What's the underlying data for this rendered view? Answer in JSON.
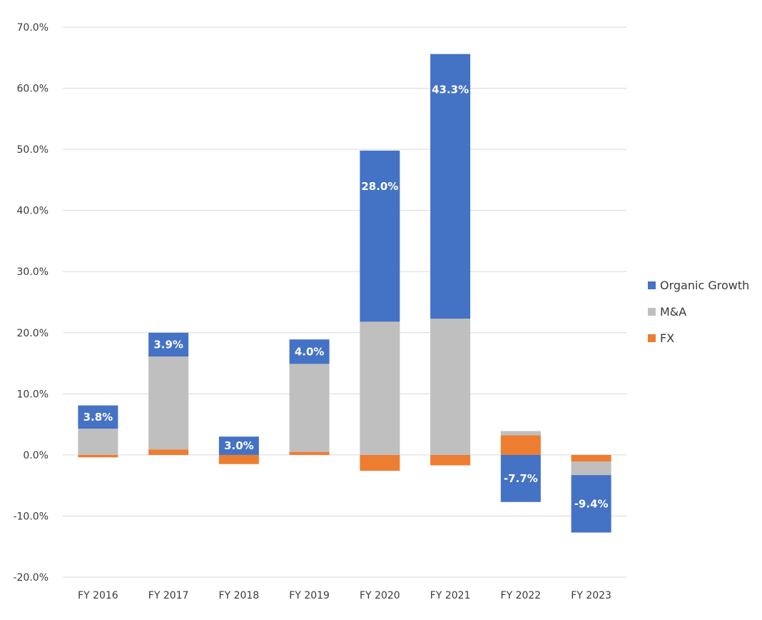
{
  "chart_data": {
    "type": "bar",
    "stacked": true,
    "categories": [
      "FY 2016",
      "FY 2017",
      "FY 2018",
      "FY 2019",
      "FY 2020",
      "FY 2021",
      "FY 2022",
      "FY 2023"
    ],
    "series": [
      {
        "name": "FX",
        "color": "#ED7D31",
        "values": [
          -0.4,
          0.9,
          -1.5,
          0.5,
          -2.6,
          -1.7,
          3.2,
          -1.1
        ]
      },
      {
        "name": "M&A",
        "color": "#BFBFBF",
        "values": [
          4.3,
          15.2,
          0.0,
          14.4,
          21.8,
          22.3,
          0.7,
          -2.2
        ]
      },
      {
        "name": "Organic Growth",
        "color": "#4472C4",
        "values": [
          3.8,
          3.9,
          3.0,
          4.0,
          28.0,
          43.3,
          -7.7,
          -9.4
        ],
        "data_labels": [
          "3.8%",
          "3.9%",
          "3.0%",
          "4.0%",
          "28.0%",
          "43.3%",
          "-7.7%",
          "-9.4%"
        ]
      }
    ],
    "legend_order": [
      "Organic Growth",
      "M&A",
      "FX"
    ],
    "legend_position": "right",
    "ylim": [
      -20,
      70
    ],
    "yticks": [
      70,
      60,
      50,
      40,
      30,
      20,
      10,
      0,
      -10,
      -20
    ],
    "ytick_labels": [
      "70.0%",
      "60.0%",
      "50.0%",
      "40.0%",
      "30.0%",
      "20.0%",
      "10.0%",
      "0.0%",
      "-10.0%",
      "-20.0%"
    ],
    "grid": true,
    "title": "",
    "xlabel": "",
    "ylabel": ""
  }
}
